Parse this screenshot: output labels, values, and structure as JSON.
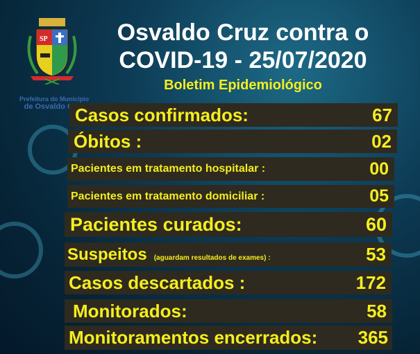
{
  "header": {
    "title_line1": "Osvaldo Cruz contra o",
    "title_line2": "COVID-19 - 25/07/2020",
    "subtitle": "Boletim Epidemiológico"
  },
  "logo": {
    "shield_text": "SP",
    "caption_line1": "Prefeitura do Município",
    "caption_line2": "de Osvaldo Cruz"
  },
  "colors": {
    "accent_yellow": "#f5ee1e",
    "row_bg": "#2e2a1f",
    "background": "#0d3b55"
  },
  "stats": [
    {
      "label": "Casos confirmados:",
      "value": "67"
    },
    {
      "label": "Óbitos :",
      "value": "02"
    },
    {
      "label": "Pacientes em tratamento hospitalar :",
      "value": "00"
    },
    {
      "label": "Pacientes em tratamento domiciliar :",
      "value": "05"
    },
    {
      "label": "Pacientes curados:",
      "value": "60"
    },
    {
      "label": "Suspeitos",
      "note": "(aguardam resultados de exames) :",
      "value": "53"
    },
    {
      "label": "Casos descartados :",
      "value": "172"
    },
    {
      "label": "Monitorados:",
      "value": "58"
    },
    {
      "label": "Monitoramentos encerrados:",
      "value": "365"
    }
  ]
}
